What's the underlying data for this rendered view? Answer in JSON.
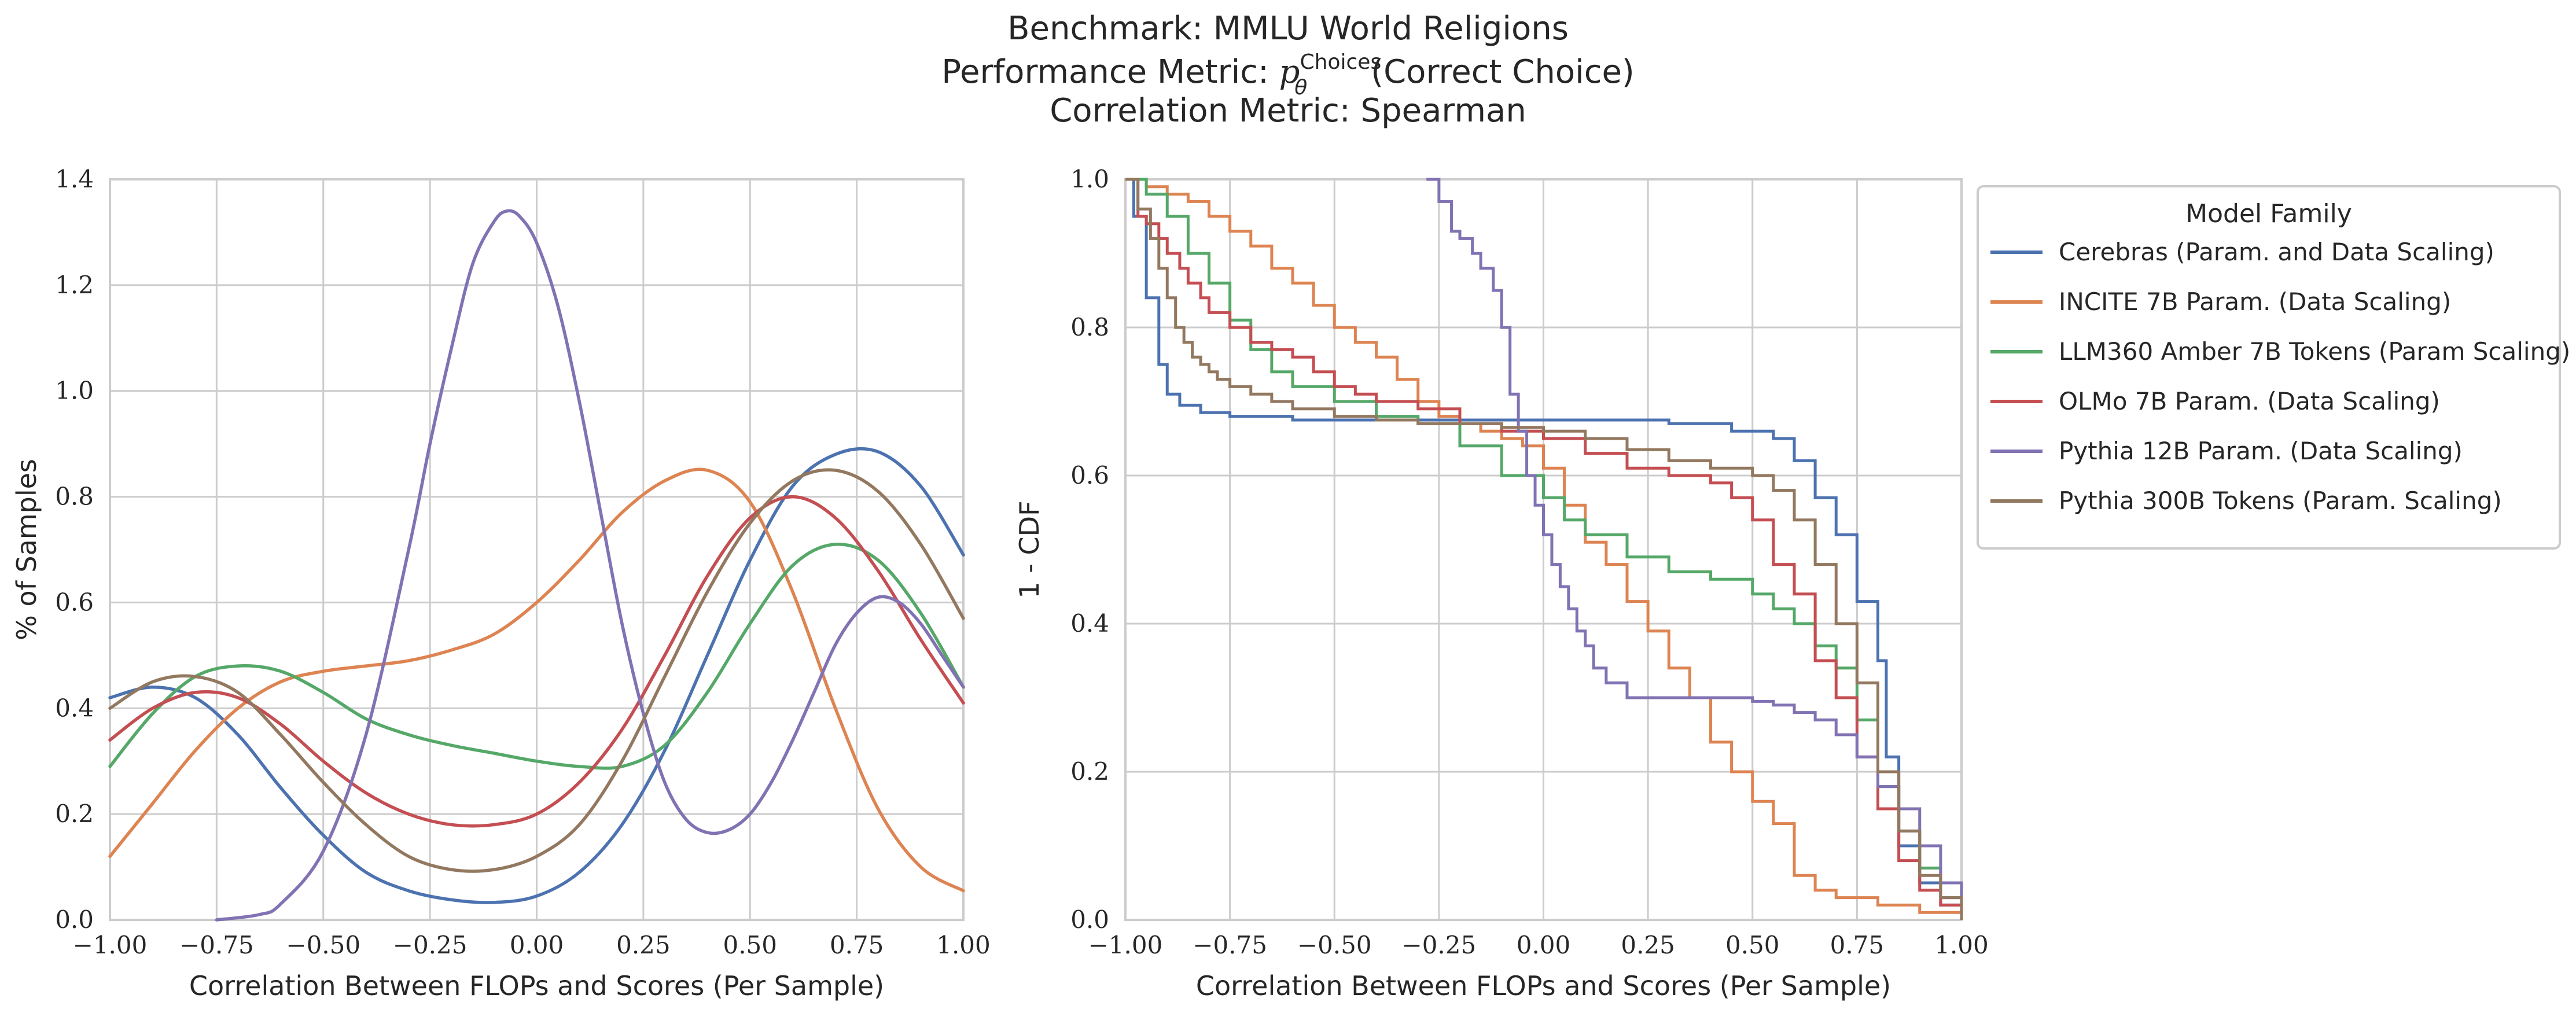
{
  "title": {
    "line1": "Benchmark: MMLU World Religions",
    "line2_prefix": "Performance Metric: ",
    "line2_p": "p",
    "line2_sub": "θ",
    "line2_sup": "Choices",
    "line2_suffix": "(Correct Choice)",
    "line3": "Correlation Metric: Spearman"
  },
  "legend": {
    "title": "Model Family",
    "placement": "outside-right-top"
  },
  "colors": {
    "Cerebras": "#4c72b0",
    "INCITE": "#dd8452",
    "LLM360": "#55a868",
    "OLMo": "#c44e52",
    "Pythia12B": "#8172b3",
    "Pythia300B": "#937860"
  },
  "chart_data": [
    {
      "type": "line",
      "subtype": "kde",
      "xlabel": "Correlation Between FLOPs and Scores (Per Sample)",
      "ylabel": "% of Samples",
      "xlim": [
        -1.0,
        1.0
      ],
      "ylim": [
        0,
        1.4
      ],
      "xticks": [
        "−1.00",
        "−0.75",
        "−0.50",
        "−0.25",
        "0.00",
        "0.25",
        "0.50",
        "0.75",
        "1.00"
      ],
      "yticks": [
        "0.0",
        "0.2",
        "0.4",
        "0.6",
        "0.8",
        "1.0",
        "1.2",
        "1.4"
      ],
      "grid": true,
      "series": [
        {
          "name": "Cerebras (Param. and Data Scaling)",
          "x": [
            -1.0,
            -0.9,
            -0.8,
            -0.7,
            -0.6,
            -0.5,
            -0.4,
            -0.3,
            -0.2,
            -0.1,
            0.0,
            0.1,
            0.2,
            0.3,
            0.4,
            0.5,
            0.6,
            0.7,
            0.8,
            0.9,
            1.0
          ],
          "y": [
            0.42,
            0.44,
            0.42,
            0.35,
            0.25,
            0.16,
            0.09,
            0.055,
            0.038,
            0.033,
            0.045,
            0.09,
            0.18,
            0.32,
            0.5,
            0.68,
            0.82,
            0.88,
            0.885,
            0.82,
            0.69
          ]
        },
        {
          "name": "INCITE 7B Param. (Data Scaling)",
          "x": [
            -1.0,
            -0.9,
            -0.8,
            -0.7,
            -0.6,
            -0.5,
            -0.4,
            -0.3,
            -0.2,
            -0.1,
            0.0,
            0.1,
            0.2,
            0.3,
            0.4,
            0.5,
            0.6,
            0.7,
            0.8,
            0.9,
            1.0
          ],
          "y": [
            0.12,
            0.22,
            0.32,
            0.4,
            0.45,
            0.47,
            0.48,
            0.49,
            0.51,
            0.54,
            0.6,
            0.68,
            0.77,
            0.83,
            0.85,
            0.79,
            0.62,
            0.4,
            0.21,
            0.1,
            0.055
          ]
        },
        {
          "name": "LLM360 Amber 7B Tokens (Param Scaling)",
          "x": [
            -1.0,
            -0.9,
            -0.8,
            -0.7,
            -0.6,
            -0.5,
            -0.4,
            -0.3,
            -0.2,
            -0.1,
            0.0,
            0.1,
            0.2,
            0.3,
            0.4,
            0.5,
            0.6,
            0.7,
            0.8,
            0.9,
            1.0
          ],
          "y": [
            0.29,
            0.39,
            0.46,
            0.48,
            0.47,
            0.43,
            0.38,
            0.35,
            0.33,
            0.315,
            0.3,
            0.29,
            0.29,
            0.33,
            0.43,
            0.56,
            0.67,
            0.71,
            0.68,
            0.58,
            0.44
          ]
        },
        {
          "name": "OLMo 7B Param. (Data Scaling)",
          "x": [
            -1.0,
            -0.9,
            -0.8,
            -0.7,
            -0.6,
            -0.5,
            -0.4,
            -0.3,
            -0.2,
            -0.1,
            0.0,
            0.1,
            0.2,
            0.3,
            0.4,
            0.5,
            0.6,
            0.7,
            0.8,
            0.9,
            1.0
          ],
          "y": [
            0.34,
            0.4,
            0.43,
            0.42,
            0.37,
            0.3,
            0.24,
            0.2,
            0.18,
            0.18,
            0.2,
            0.26,
            0.36,
            0.5,
            0.65,
            0.76,
            0.8,
            0.76,
            0.66,
            0.53,
            0.41
          ]
        },
        {
          "name": "Pythia 12B Param. (Data Scaling)",
          "x": [
            -0.75,
            -0.65,
            -0.6,
            -0.5,
            -0.4,
            -0.3,
            -0.25,
            -0.2,
            -0.15,
            -0.1,
            -0.07,
            -0.04,
            0.0,
            0.05,
            0.1,
            0.15,
            0.2,
            0.25,
            0.3,
            0.35,
            0.4,
            0.45,
            0.5,
            0.55,
            0.6,
            0.65,
            0.7,
            0.75,
            0.8,
            0.85,
            0.9,
            0.95,
            1.0
          ],
          "y": [
            0.0,
            0.01,
            0.03,
            0.13,
            0.35,
            0.7,
            0.9,
            1.08,
            1.24,
            1.32,
            1.34,
            1.33,
            1.28,
            1.16,
            0.98,
            0.77,
            0.56,
            0.39,
            0.26,
            0.19,
            0.165,
            0.17,
            0.2,
            0.26,
            0.34,
            0.43,
            0.52,
            0.58,
            0.61,
            0.6,
            0.56,
            0.5,
            0.44
          ]
        },
        {
          "name": "Pythia 300B Tokens (Param. Scaling)",
          "x": [
            -1.0,
            -0.9,
            -0.8,
            -0.7,
            -0.6,
            -0.5,
            -0.4,
            -0.3,
            -0.2,
            -0.1,
            0.0,
            0.1,
            0.2,
            0.3,
            0.4,
            0.5,
            0.6,
            0.7,
            0.8,
            0.9,
            1.0
          ],
          "y": [
            0.4,
            0.45,
            0.46,
            0.43,
            0.35,
            0.26,
            0.18,
            0.12,
            0.095,
            0.095,
            0.12,
            0.18,
            0.3,
            0.46,
            0.62,
            0.75,
            0.83,
            0.85,
            0.81,
            0.71,
            0.57
          ]
        }
      ]
    },
    {
      "type": "line",
      "subtype": "ecdf-complement",
      "xlabel": "Correlation Between FLOPs and Scores (Per Sample)",
      "ylabel": "1 - CDF",
      "xlim": [
        -1.0,
        1.0
      ],
      "ylim": [
        0,
        1.0
      ],
      "xticks": [
        "−1.00",
        "−0.75",
        "−0.50",
        "−0.25",
        "0.00",
        "0.25",
        "0.50",
        "0.75",
        "1.00"
      ],
      "yticks": [
        "0.0",
        "0.2",
        "0.4",
        "0.6",
        "0.8",
        "1.0"
      ],
      "grid": true,
      "series": [
        {
          "name": "Cerebras (Param. and Data Scaling)",
          "x": [
            -1.0,
            -0.98,
            -0.95,
            -0.92,
            -0.9,
            -0.87,
            -0.82,
            -0.75,
            -0.6,
            -0.5,
            0.0,
            0.3,
            0.45,
            0.55,
            0.6,
            0.65,
            0.7,
            0.75,
            0.8,
            0.82,
            0.85,
            0.9,
            0.95,
            1.0
          ],
          "y": [
            1.0,
            0.95,
            0.84,
            0.75,
            0.71,
            0.695,
            0.685,
            0.68,
            0.675,
            0.675,
            0.675,
            0.67,
            0.66,
            0.65,
            0.62,
            0.57,
            0.52,
            0.43,
            0.35,
            0.22,
            0.1,
            0.05,
            0.02,
            0.0
          ]
        },
        {
          "name": "INCITE 7B Param. (Data Scaling)",
          "x": [
            -1.0,
            -0.95,
            -0.9,
            -0.85,
            -0.8,
            -0.75,
            -0.7,
            -0.65,
            -0.6,
            -0.55,
            -0.5,
            -0.45,
            -0.4,
            -0.35,
            -0.3,
            -0.25,
            -0.2,
            -0.15,
            -0.1,
            -0.05,
            0.0,
            0.05,
            0.1,
            0.15,
            0.2,
            0.25,
            0.3,
            0.35,
            0.4,
            0.45,
            0.5,
            0.55,
            0.6,
            0.65,
            0.7,
            0.8,
            0.9,
            1.0
          ],
          "y": [
            1.0,
            0.99,
            0.98,
            0.97,
            0.95,
            0.93,
            0.91,
            0.88,
            0.86,
            0.83,
            0.8,
            0.78,
            0.76,
            0.73,
            0.7,
            0.68,
            0.67,
            0.66,
            0.65,
            0.64,
            0.61,
            0.56,
            0.51,
            0.48,
            0.43,
            0.39,
            0.34,
            0.3,
            0.24,
            0.2,
            0.16,
            0.13,
            0.06,
            0.04,
            0.03,
            0.02,
            0.01,
            0.0
          ]
        },
        {
          "name": "LLM360 Amber 7B Tokens (Param Scaling)",
          "x": [
            -1.0,
            -0.95,
            -0.9,
            -0.85,
            -0.8,
            -0.75,
            -0.7,
            -0.65,
            -0.6,
            -0.5,
            -0.4,
            -0.3,
            -0.2,
            -0.1,
            0.0,
            0.05,
            0.1,
            0.2,
            0.3,
            0.4,
            0.5,
            0.55,
            0.6,
            0.65,
            0.7,
            0.75,
            0.8,
            0.85,
            0.9,
            0.95,
            1.0
          ],
          "y": [
            1.0,
            0.98,
            0.95,
            0.9,
            0.86,
            0.81,
            0.77,
            0.74,
            0.72,
            0.7,
            0.68,
            0.67,
            0.64,
            0.6,
            0.57,
            0.54,
            0.52,
            0.49,
            0.47,
            0.46,
            0.44,
            0.42,
            0.4,
            0.37,
            0.34,
            0.27,
            0.18,
            0.12,
            0.07,
            0.03,
            0.0
          ]
        },
        {
          "name": "OLMo 7B Param. (Data Scaling)",
          "x": [
            -1.0,
            -0.97,
            -0.95,
            -0.92,
            -0.9,
            -0.87,
            -0.85,
            -0.82,
            -0.8,
            -0.75,
            -0.7,
            -0.65,
            -0.6,
            -0.55,
            -0.5,
            -0.45,
            -0.4,
            -0.3,
            -0.2,
            -0.1,
            0.0,
            0.1,
            0.2,
            0.3,
            0.4,
            0.45,
            0.5,
            0.55,
            0.6,
            0.65,
            0.7,
            0.75,
            0.8,
            0.85,
            0.9,
            0.95,
            1.0
          ],
          "y": [
            1.0,
            0.95,
            0.94,
            0.92,
            0.9,
            0.88,
            0.86,
            0.84,
            0.82,
            0.8,
            0.78,
            0.77,
            0.76,
            0.74,
            0.72,
            0.71,
            0.7,
            0.69,
            0.67,
            0.66,
            0.65,
            0.63,
            0.61,
            0.6,
            0.59,
            0.57,
            0.54,
            0.48,
            0.44,
            0.35,
            0.3,
            0.22,
            0.15,
            0.08,
            0.04,
            0.02,
            0.0
          ]
        },
        {
          "name": "Pythia 12B Param. (Data Scaling)",
          "x": [
            -0.28,
            -0.25,
            -0.22,
            -0.2,
            -0.17,
            -0.15,
            -0.12,
            -0.1,
            -0.08,
            -0.06,
            -0.04,
            -0.02,
            0.0,
            0.02,
            0.04,
            0.06,
            0.08,
            0.1,
            0.12,
            0.15,
            0.2,
            0.3,
            0.4,
            0.5,
            0.55,
            0.6,
            0.65,
            0.7,
            0.75,
            0.8,
            0.85,
            0.9,
            0.95,
            1.0
          ],
          "y": [
            1.0,
            0.97,
            0.93,
            0.92,
            0.9,
            0.88,
            0.85,
            0.8,
            0.71,
            0.66,
            0.6,
            0.56,
            0.52,
            0.48,
            0.45,
            0.42,
            0.39,
            0.37,
            0.34,
            0.32,
            0.3,
            0.3,
            0.3,
            0.295,
            0.29,
            0.28,
            0.27,
            0.25,
            0.22,
            0.18,
            0.15,
            0.1,
            0.05,
            0.0
          ]
        },
        {
          "name": "Pythia 300B Tokens (Param. Scaling)",
          "x": [
            -1.0,
            -0.97,
            -0.94,
            -0.92,
            -0.9,
            -0.88,
            -0.86,
            -0.84,
            -0.82,
            -0.8,
            -0.78,
            -0.75,
            -0.7,
            -0.65,
            -0.6,
            -0.55,
            -0.5,
            -0.4,
            -0.3,
            -0.2,
            -0.1,
            0.0,
            0.1,
            0.2,
            0.3,
            0.4,
            0.5,
            0.55,
            0.6,
            0.65,
            0.7,
            0.75,
            0.8,
            0.85,
            0.9,
            0.95,
            1.0
          ],
          "y": [
            1.0,
            0.96,
            0.92,
            0.88,
            0.84,
            0.8,
            0.78,
            0.76,
            0.75,
            0.74,
            0.73,
            0.72,
            0.71,
            0.7,
            0.69,
            0.69,
            0.68,
            0.675,
            0.67,
            0.67,
            0.665,
            0.66,
            0.65,
            0.635,
            0.62,
            0.61,
            0.6,
            0.58,
            0.54,
            0.48,
            0.4,
            0.32,
            0.2,
            0.12,
            0.06,
            0.03,
            0.0
          ]
        }
      ]
    }
  ]
}
